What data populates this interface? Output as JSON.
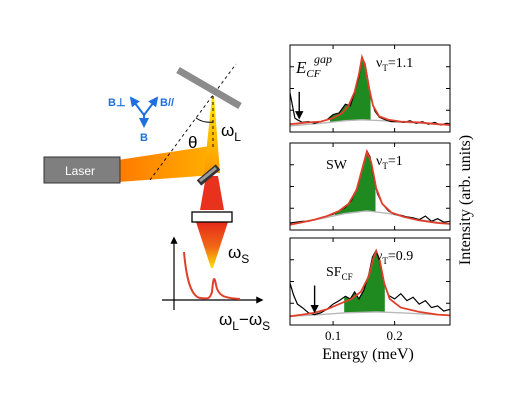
{
  "setup": {
    "laser_label": "Laser",
    "theta_label": "θ",
    "omega_l": "ω",
    "omega_l_sub": "L",
    "omega_s": "ω",
    "omega_s_sub": "S",
    "b_perp": "B⊥",
    "b_par": "B//",
    "b_label": "B",
    "axis_main": "ω",
    "axis_sub1": "L",
    "axis_minus": "−ω",
    "axis_sub2": "S"
  },
  "colors": {
    "laser_orange": "#ff8a00",
    "beam_yellow": "#ffd000",
    "beam_red": "#e8321e",
    "field_blue": "#1e6fdf",
    "mirror_gray": "#8c8c8c",
    "data_black": "#000000",
    "fit_red": "#e0402a",
    "fill_green": "#1f8a1f",
    "baseline_gray": "#b8b8b8"
  },
  "chart_data": {
    "type": "line",
    "xlabel": "Energy (meV)",
    "ylabel": "Intensity (arb. units)",
    "xlim": [
      0.03,
      0.29
    ],
    "xticks": [
      {
        "value": 0.1,
        "label": "0.1"
      },
      {
        "value": 0.2,
        "label": "0.2"
      }
    ],
    "grid": false,
    "panels": [
      {
        "filling": "ν",
        "filling_sub": "T",
        "filling_value": "=1.1",
        "annotation": "E",
        "annotation_sub": "CF",
        "annotation_sup": "gap",
        "arrow_at": 0.045,
        "ylim": [
          0,
          1
        ],
        "peak": {
          "center": 0.147,
          "width": 0.02,
          "amp": 0.72
        },
        "baseline": [
          [
            0.03,
            0.07
          ],
          [
            0.08,
            0.1
          ],
          [
            0.12,
            0.13
          ],
          [
            0.147,
            0.14
          ],
          [
            0.18,
            0.13
          ],
          [
            0.22,
            0.11
          ],
          [
            0.29,
            0.08
          ]
        ],
        "data": [
          [
            0.03,
            0.45
          ],
          [
            0.034,
            0.3
          ],
          [
            0.038,
            0.16
          ],
          [
            0.042,
            0.14
          ],
          [
            0.05,
            0.11
          ],
          [
            0.06,
            0.12
          ],
          [
            0.07,
            0.1
          ],
          [
            0.08,
            0.12
          ],
          [
            0.09,
            0.14
          ],
          [
            0.1,
            0.2
          ],
          [
            0.11,
            0.22
          ],
          [
            0.12,
            0.32
          ],
          [
            0.128,
            0.3
          ],
          [
            0.135,
            0.45
          ],
          [
            0.142,
            0.63
          ],
          [
            0.147,
            0.86
          ],
          [
            0.152,
            0.78
          ],
          [
            0.157,
            0.58
          ],
          [
            0.162,
            0.38
          ],
          [
            0.168,
            0.24
          ],
          [
            0.175,
            0.17
          ],
          [
            0.185,
            0.14
          ],
          [
            0.195,
            0.12
          ],
          [
            0.205,
            0.12
          ],
          [
            0.215,
            0.11
          ],
          [
            0.225,
            0.13
          ],
          [
            0.235,
            0.1
          ],
          [
            0.245,
            0.12
          ],
          [
            0.255,
            0.09
          ],
          [
            0.265,
            0.11
          ],
          [
            0.275,
            0.08
          ],
          [
            0.285,
            0.1
          ],
          [
            0.29,
            0.09
          ]
        ],
        "fit": [
          [
            0.03,
            0.09
          ],
          [
            0.045,
            0.1
          ],
          [
            0.06,
            0.11
          ],
          [
            0.08,
            0.12
          ],
          [
            0.1,
            0.16
          ],
          [
            0.115,
            0.22
          ],
          [
            0.125,
            0.3
          ],
          [
            0.135,
            0.46
          ],
          [
            0.142,
            0.66
          ],
          [
            0.147,
            0.86
          ],
          [
            0.152,
            0.76
          ],
          [
            0.158,
            0.52
          ],
          [
            0.165,
            0.3
          ],
          [
            0.175,
            0.18
          ],
          [
            0.19,
            0.14
          ],
          [
            0.21,
            0.12
          ],
          [
            0.24,
            0.11
          ],
          [
            0.27,
            0.09
          ],
          [
            0.29,
            0.08
          ]
        ]
      },
      {
        "filling": "ν",
        "filling_sub": "T",
        "filling_value": "=1",
        "annotation": "SW",
        "annotation_sub": "",
        "annotation_sup": "",
        "arrow_at": null,
        "ylim": [
          0,
          1
        ],
        "peak": {
          "center": 0.155,
          "width": 0.02,
          "amp": 0.7
        },
        "baseline": [
          [
            0.03,
            0.06
          ],
          [
            0.08,
            0.13
          ],
          [
            0.12,
            0.19
          ],
          [
            0.155,
            0.22
          ],
          [
            0.19,
            0.19
          ],
          [
            0.23,
            0.13
          ],
          [
            0.29,
            0.07
          ]
        ],
        "data": [
          [
            0.03,
            0.08
          ],
          [
            0.04,
            0.09
          ],
          [
            0.05,
            0.1
          ],
          [
            0.06,
            0.1
          ],
          [
            0.07,
            0.12
          ],
          [
            0.08,
            0.14
          ],
          [
            0.09,
            0.16
          ],
          [
            0.1,
            0.18
          ],
          [
            0.11,
            0.22
          ],
          [
            0.12,
            0.26
          ],
          [
            0.13,
            0.34
          ],
          [
            0.14,
            0.5
          ],
          [
            0.148,
            0.72
          ],
          [
            0.155,
            0.91
          ],
          [
            0.16,
            0.84
          ],
          [
            0.166,
            0.6
          ],
          [
            0.172,
            0.42
          ],
          [
            0.18,
            0.3
          ],
          [
            0.19,
            0.22
          ],
          [
            0.2,
            0.18
          ],
          [
            0.21,
            0.17
          ],
          [
            0.22,
            0.15
          ],
          [
            0.23,
            0.14
          ],
          [
            0.24,
            0.12
          ],
          [
            0.25,
            0.16
          ],
          [
            0.26,
            0.1
          ],
          [
            0.27,
            0.13
          ],
          [
            0.28,
            0.09
          ],
          [
            0.29,
            0.1
          ]
        ],
        "fit": [
          [
            0.03,
            0.06
          ],
          [
            0.05,
            0.09
          ],
          [
            0.07,
            0.12
          ],
          [
            0.09,
            0.16
          ],
          [
            0.11,
            0.22
          ],
          [
            0.125,
            0.3
          ],
          [
            0.138,
            0.46
          ],
          [
            0.148,
            0.72
          ],
          [
            0.155,
            0.9
          ],
          [
            0.162,
            0.78
          ],
          [
            0.17,
            0.48
          ],
          [
            0.18,
            0.3
          ],
          [
            0.195,
            0.2
          ],
          [
            0.215,
            0.15
          ],
          [
            0.24,
            0.11
          ],
          [
            0.27,
            0.08
          ],
          [
            0.29,
            0.07
          ]
        ]
      },
      {
        "filling": "ν",
        "filling_sub": "T",
        "filling_value": "=0.9",
        "annotation": "SF",
        "annotation_sub": "CF",
        "annotation_sup": "",
        "arrow_at": 0.07,
        "ylim": [
          0,
          1
        ],
        "peak": {
          "center": 0.17,
          "width": 0.02,
          "amp": 0.65
        },
        "baseline": [
          [
            0.03,
            0.1
          ],
          [
            0.08,
            0.12
          ],
          [
            0.12,
            0.14
          ],
          [
            0.17,
            0.15
          ],
          [
            0.21,
            0.14
          ],
          [
            0.29,
            0.11
          ]
        ],
        "data": [
          [
            0.03,
            0.48
          ],
          [
            0.036,
            0.34
          ],
          [
            0.042,
            0.24
          ],
          [
            0.05,
            0.2
          ],
          [
            0.06,
            0.14
          ],
          [
            0.07,
            0.12
          ],
          [
            0.08,
            0.14
          ],
          [
            0.09,
            0.18
          ],
          [
            0.1,
            0.24
          ],
          [
            0.11,
            0.28
          ],
          [
            0.12,
            0.33
          ],
          [
            0.128,
            0.3
          ],
          [
            0.135,
            0.38
          ],
          [
            0.142,
            0.3
          ],
          [
            0.15,
            0.4
          ],
          [
            0.158,
            0.58
          ],
          [
            0.164,
            0.78
          ],
          [
            0.17,
            0.86
          ],
          [
            0.176,
            0.72
          ],
          [
            0.182,
            0.5
          ],
          [
            0.19,
            0.34
          ],
          [
            0.2,
            0.3
          ],
          [
            0.21,
            0.36
          ],
          [
            0.22,
            0.28
          ],
          [
            0.23,
            0.32
          ],
          [
            0.24,
            0.24
          ],
          [
            0.25,
            0.28
          ],
          [
            0.26,
            0.2
          ],
          [
            0.27,
            0.22
          ],
          [
            0.28,
            0.16
          ],
          [
            0.29,
            0.18
          ]
        ],
        "fit": [
          [
            0.03,
            0.1
          ],
          [
            0.05,
            0.12
          ],
          [
            0.07,
            0.14
          ],
          [
            0.09,
            0.18
          ],
          [
            0.11,
            0.24
          ],
          [
            0.13,
            0.3
          ],
          [
            0.145,
            0.38
          ],
          [
            0.158,
            0.56
          ],
          [
            0.165,
            0.76
          ],
          [
            0.17,
            0.85
          ],
          [
            0.176,
            0.74
          ],
          [
            0.183,
            0.48
          ],
          [
            0.192,
            0.3
          ],
          [
            0.21,
            0.2
          ],
          [
            0.24,
            0.15
          ],
          [
            0.27,
            0.12
          ],
          [
            0.29,
            0.11
          ]
        ]
      }
    ]
  }
}
